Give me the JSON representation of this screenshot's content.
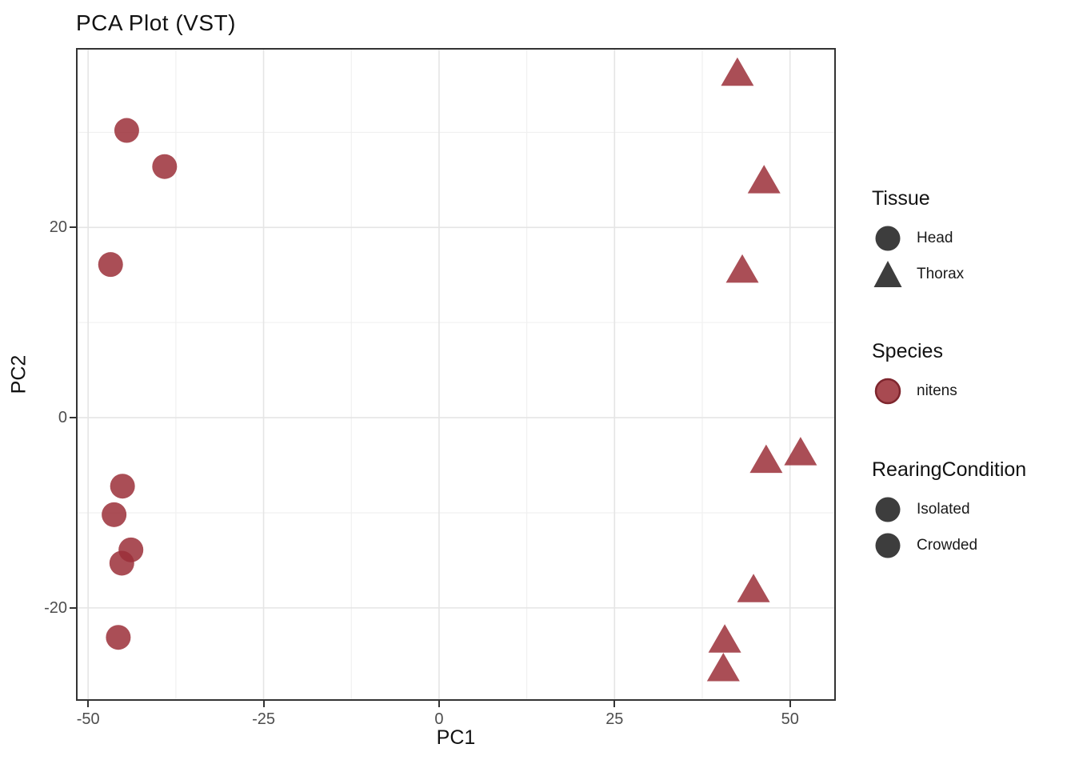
{
  "chart_data": {
    "type": "scatter",
    "title": "PCA Plot (VST)",
    "xlabel": "PC1",
    "ylabel": "PC2",
    "xlim": [
      -51.5,
      56.3
    ],
    "ylim": [
      -29.6,
      38.7
    ],
    "grid": "major+minor",
    "legend_position": "right",
    "x_ticks": [
      {
        "v": -50,
        "label": "-50"
      },
      {
        "v": -25,
        "label": "-25"
      },
      {
        "v": 0,
        "label": "0"
      },
      {
        "v": 25,
        "label": "25"
      },
      {
        "v": 50,
        "label": "50"
      }
    ],
    "y_ticks": [
      {
        "v": -20,
        "label": "-20"
      },
      {
        "v": 0,
        "label": "0"
      },
      {
        "v": 20,
        "label": "20"
      }
    ],
    "x_minor_gridlines": [
      -37.5,
      -12.5,
      12.5,
      37.5
    ],
    "y_minor_gridlines": [
      -10,
      10,
      30
    ],
    "point_opacity": 0.85,
    "series": [
      {
        "name": "Head",
        "shape": "circle",
        "species": "nitens",
        "points": [
          [
            -44.5,
            30.2
          ],
          [
            -39.1,
            26.4
          ],
          [
            -46.8,
            16.1
          ],
          [
            -45.1,
            -7.2
          ],
          [
            -46.3,
            -10.2
          ],
          [
            -43.9,
            -13.9
          ],
          [
            -45.2,
            -15.3
          ],
          [
            -45.7,
            -23.1
          ]
        ]
      },
      {
        "name": "Thorax",
        "shape": "triangle",
        "species": "nitens",
        "points": [
          [
            42.5,
            36.2
          ],
          [
            46.3,
            24.9
          ],
          [
            43.2,
            15.5
          ],
          [
            46.6,
            -4.5
          ],
          [
            51.5,
            -3.7
          ],
          [
            44.8,
            -18.1
          ],
          [
            40.7,
            -23.4
          ],
          [
            40.5,
            -26.4
          ]
        ]
      }
    ]
  },
  "legend": {
    "groups": [
      {
        "title": "Tissue",
        "items": [
          {
            "label": "Head",
            "shape": "circle",
            "color": "#3d3d3d"
          },
          {
            "label": "Thorax",
            "shape": "triangle",
            "color": "#3d3d3d"
          }
        ]
      },
      {
        "title": "Species",
        "items": [
          {
            "label": "nitens",
            "shape": "circle",
            "color": "#a84a51",
            "stroke": "#7e262e"
          }
        ]
      },
      {
        "title": "RearingCondition",
        "items": [
          {
            "label": "Isolated",
            "shape": "circle",
            "color": "#3d3d3d"
          },
          {
            "label": "Crowded",
            "shape": "circle",
            "color": "#3d3d3d"
          }
        ]
      }
    ]
  },
  "colors": {
    "point_red": "#9b2f38",
    "legend_dark": "#3d3d3d",
    "grid_major": "#e5e5e5",
    "grid_minor": "#f0f0f0",
    "panel_border": "#333333",
    "tick_label": "#4d4d4d",
    "text": "#121212"
  }
}
